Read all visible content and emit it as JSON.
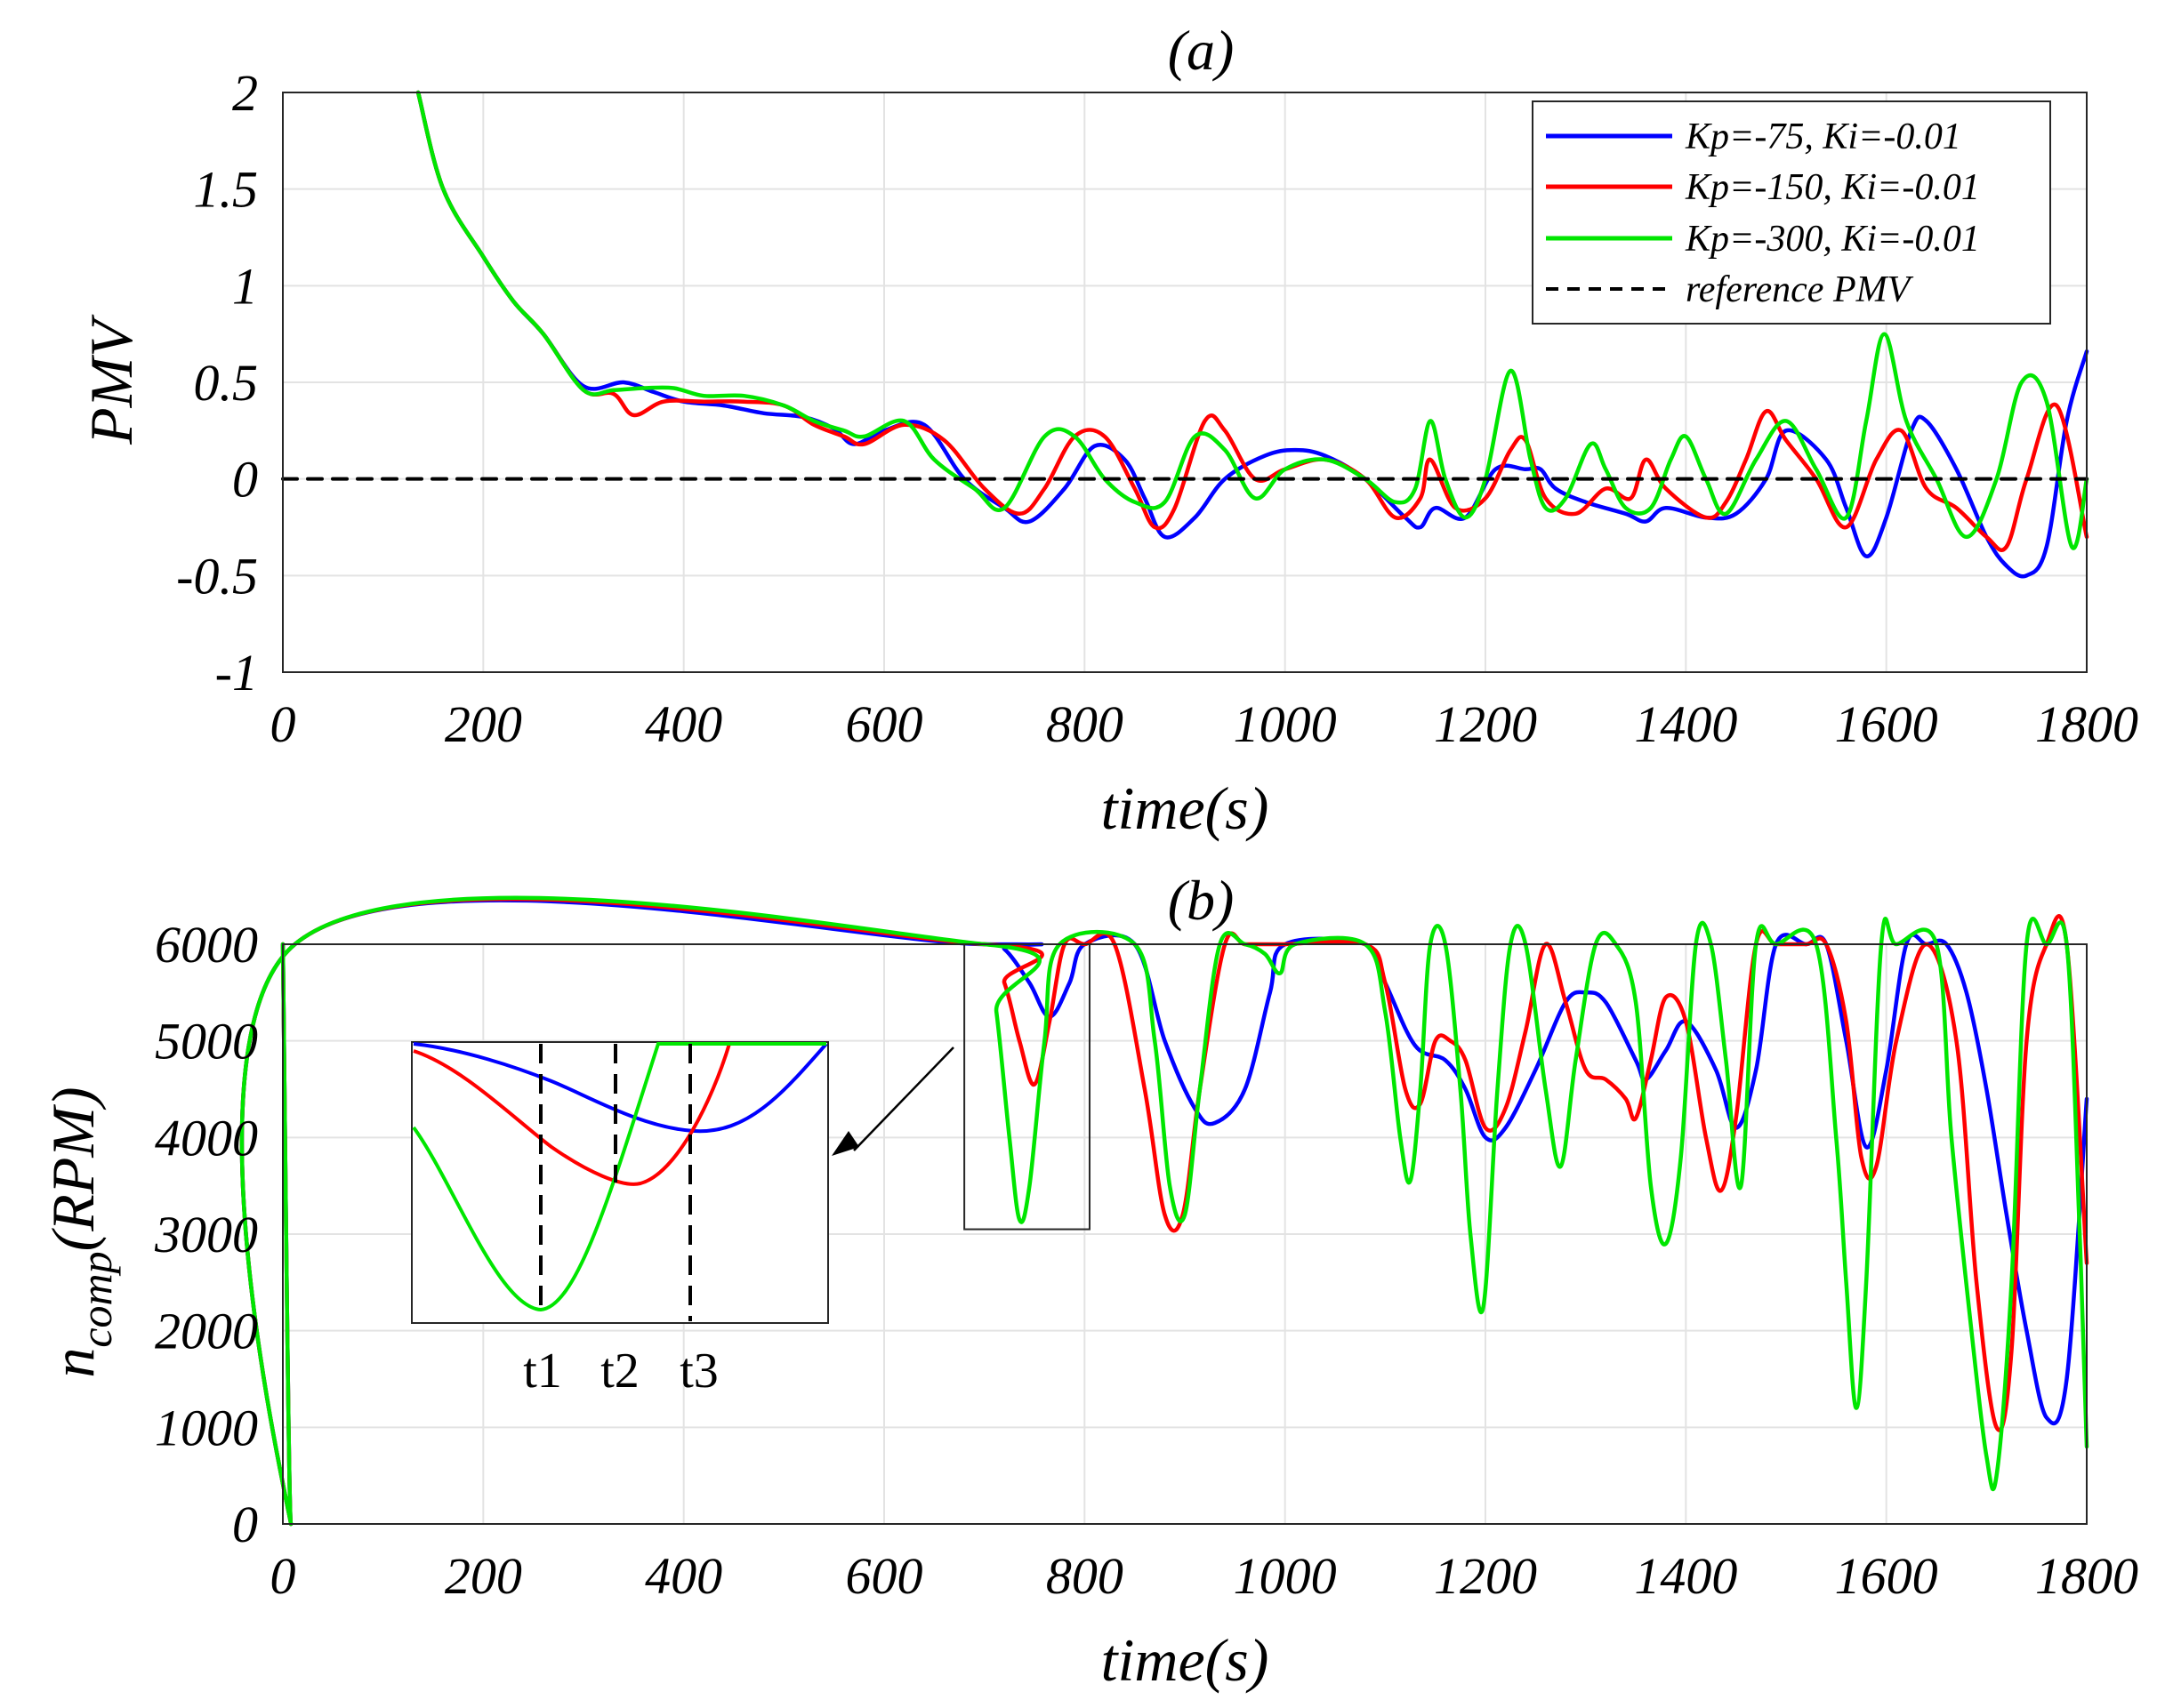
{
  "colors": {
    "kp75": "#0000ff",
    "kp150": "#ff0000",
    "kp300": "#00e600",
    "reference": "#000000",
    "grid": "#e3e3e3",
    "axes": "#262626"
  },
  "chart_data": [
    {
      "panel": "a",
      "type": "line",
      "title": "(a)",
      "xlabel": "time(s)",
      "ylabel": "PMV",
      "xlim": [
        0,
        1800
      ],
      "ylim": [
        -1,
        2
      ],
      "xticks": [
        "0",
        "200",
        "400",
        "600",
        "800",
        "1000",
        "1200",
        "1400",
        "1600",
        "1800"
      ],
      "yticks": [
        "-1",
        "-0.5",
        "0",
        "0.5",
        "1",
        "1.5",
        "2"
      ],
      "grid": true,
      "legend_location": "top-right",
      "legend": [
        "Kp=-75, Ki=-0.01",
        "Kp=-150, Ki=-0.01",
        "Kp=-300, Ki=-0.01",
        "reference PMV"
      ],
      "series": [
        {
          "name": "Kp=-75, Ki=-0.01",
          "color": "#0000ff",
          "x": [
            135,
            160,
            200,
            230,
            260,
            300,
            340,
            370,
            400,
            440,
            480,
            520,
            550,
            570,
            600,
            640,
            680,
            720,
            745,
            780,
            810,
            840,
            860,
            880,
            910,
            940,
            980,
            1010,
            1040,
            1080,
            1120,
            1135,
            1150,
            1180,
            1210,
            1240,
            1255,
            1270,
            1300,
            1340,
            1360,
            1380,
            1420,
            1450,
            1480,
            1500,
            1540,
            1560,
            1580,
            1600,
            1625,
            1640,
            1670,
            1700,
            1720,
            1740,
            1760,
            1780,
            1800
          ],
          "y": [
            2,
            1.5,
            1.15,
            0.92,
            0.75,
            0.48,
            0.5,
            0.45,
            0.4,
            0.38,
            0.34,
            0.32,
            0.26,
            0.18,
            0.25,
            0.28,
            0.0,
            -0.15,
            -0.22,
            -0.05,
            0.17,
            0.1,
            -0.1,
            -0.3,
            -0.2,
            0.0,
            0.12,
            0.15,
            0.12,
            0.0,
            -0.2,
            -0.25,
            -0.15,
            -0.2,
            0.05,
            0.05,
            0.05,
            -0.05,
            -0.12,
            -0.18,
            -0.22,
            -0.15,
            -0.2,
            -0.18,
            0.0,
            0.25,
            0.1,
            -0.15,
            -0.4,
            -0.2,
            0.25,
            0.3,
            0.05,
            -0.3,
            -0.45,
            -0.5,
            -0.35,
            0.3,
            0.66
          ]
        },
        {
          "name": "Kp=-150, Ki=-0.01",
          "color": "#ff0000",
          "x": [
            135,
            160,
            200,
            230,
            260,
            300,
            330,
            350,
            380,
            420,
            460,
            500,
            530,
            560,
            580,
            620,
            660,
            700,
            735,
            760,
            790,
            820,
            850,
            870,
            890,
            920,
            940,
            970,
            1000,
            1040,
            1080,
            1110,
            1135,
            1145,
            1170,
            1200,
            1225,
            1240,
            1260,
            1290,
            1320,
            1345,
            1360,
            1380,
            1420,
            1440,
            1460,
            1480,
            1500,
            1530,
            1560,
            1590,
            1615,
            1640,
            1670,
            1700,
            1720,
            1740,
            1770,
            1800
          ],
          "y": [
            2,
            1.5,
            1.15,
            0.92,
            0.75,
            0.46,
            0.44,
            0.33,
            0.4,
            0.4,
            0.4,
            0.38,
            0.28,
            0.22,
            0.18,
            0.28,
            0.2,
            -0.05,
            -0.18,
            -0.05,
            0.22,
            0.22,
            -0.05,
            -0.25,
            -0.15,
            0.3,
            0.25,
            0.0,
            0.05,
            0.1,
            0.0,
            -0.2,
            -0.1,
            0.1,
            -0.15,
            -0.1,
            0.15,
            0.2,
            -0.1,
            -0.18,
            -0.05,
            -0.1,
            0.1,
            -0.05,
            -0.2,
            -0.12,
            0.1,
            0.35,
            0.2,
            0.0,
            -0.25,
            0.1,
            0.25,
            -0.05,
            -0.15,
            -0.3,
            -0.35,
            0.0,
            0.38,
            -0.3
          ]
        },
        {
          "name": "Kp=-300, Ki=-0.01",
          "color": "#00e600",
          "x": [
            135,
            160,
            200,
            230,
            260,
            300,
            330,
            360,
            390,
            420,
            460,
            500,
            530,
            560,
            580,
            620,
            650,
            690,
            720,
            760,
            790,
            820,
            850,
            880,
            910,
            940,
            970,
            1000,
            1040,
            1080,
            1110,
            1130,
            1145,
            1160,
            1180,
            1200,
            1225,
            1245,
            1260,
            1280,
            1305,
            1320,
            1340,
            1365,
            1385,
            1400,
            1420,
            1440,
            1470,
            1500,
            1530,
            1560,
            1580,
            1598,
            1620,
            1650,
            1680,
            1710,
            1735,
            1760,
            1785,
            1800
          ],
          "y": [
            2,
            1.5,
            1.15,
            0.92,
            0.75,
            0.46,
            0.46,
            0.47,
            0.47,
            0.43,
            0.43,
            0.38,
            0.3,
            0.25,
            0.22,
            0.3,
            0.1,
            -0.05,
            -0.15,
            0.22,
            0.22,
            0.0,
            -0.12,
            -0.12,
            0.22,
            0.15,
            -0.1,
            0.05,
            0.1,
            0.0,
            -0.12,
            -0.05,
            0.3,
            0.0,
            -0.2,
            0.0,
            0.56,
            0.1,
            -0.15,
            -0.1,
            0.18,
            0.05,
            -0.15,
            -0.15,
            0.1,
            0.22,
            0.0,
            -0.18,
            0.1,
            0.3,
            0.05,
            -0.2,
            0.3,
            0.75,
            0.3,
            0.0,
            -0.3,
            0.0,
            0.5,
            0.4,
            -0.35,
            0.0
          ]
        },
        {
          "name": "reference PMV",
          "color": "#000000",
          "style": "dashed",
          "x": [
            0,
            1800
          ],
          "y": [
            0,
            0
          ]
        }
      ]
    },
    {
      "panel": "b",
      "type": "line",
      "title": "(b)",
      "xlabel": "time(s)",
      "ylabel_main": "n",
      "ylabel_sub": "comp",
      "ylabel_unit": "(RPM)",
      "xlim": [
        0,
        1800
      ],
      "ylim": [
        0,
        6000
      ],
      "xticks": [
        "0",
        "200",
        "400",
        "600",
        "800",
        "1000",
        "1200",
        "1400",
        "1600",
        "1800"
      ],
      "yticks": [
        "0",
        "1000",
        "2000",
        "3000",
        "4000",
        "5000",
        "6000"
      ],
      "grid": true,
      "series": [
        {
          "name": "Kp=-75, Ki=-0.01",
          "color": "#0000ff",
          "x": [
            0,
            8,
            12,
            700,
            720,
            745,
            765,
            785,
            800,
            850,
            880,
            910,
            930,
            960,
            985,
            1000,
            1080,
            1100,
            1130,
            1160,
            1180,
            1200,
            1220,
            1250,
            1280,
            1300,
            1320,
            1350,
            1360,
            1380,
            1400,
            1430,
            1450,
            1470,
            1490,
            1520,
            1540,
            1560,
            1580,
            1600,
            1620,
            1640,
            1660,
            1680,
            1700,
            1720,
            1740,
            1760,
            1780,
            1800
          ],
          "y": [
            6000,
            0,
            6000,
            6000,
            5950,
            5600,
            5250,
            5600,
            6000,
            6000,
            5000,
            4300,
            4150,
            4500,
            5500,
            6000,
            6000,
            5600,
            4950,
            4800,
            4500,
            4000,
            4100,
            4700,
            5400,
            5500,
            5400,
            4800,
            4600,
            4900,
            5200,
            4700,
            4100,
            4700,
            6000,
            6000,
            6000,
            5000,
            3900,
            4700,
            6000,
            6000,
            6000,
            5500,
            4500,
            3200,
            2000,
            1100,
            1500,
            4400
          ]
        },
        {
          "name": "Kp=-150, Ki=-0.01",
          "color": "#ff0000",
          "x": [
            0,
            8,
            12,
            700,
            720,
            735,
            750,
            765,
            780,
            800,
            830,
            860,
            880,
            898,
            915,
            940,
            960,
            990,
            1000,
            1080,
            1100,
            1120,
            1135,
            1150,
            1165,
            1180,
            1200,
            1220,
            1240,
            1260,
            1280,
            1300,
            1320,
            1340,
            1350,
            1365,
            1380,
            1400,
            1420,
            1435,
            1450,
            1470,
            1490,
            1520,
            1540,
            1560,
            1575,
            1590,
            1610,
            1640,
            1670,
            1690,
            1710,
            1725,
            1740,
            1760,
            1780,
            1800
          ],
          "y": [
            6000,
            0,
            6000,
            6000,
            5600,
            5000,
            4550,
            5200,
            6000,
            6000,
            6000,
            4500,
            3200,
            3200,
            4500,
            6000,
            6000,
            6000,
            6000,
            6000,
            5600,
            4500,
            4350,
            5000,
            5000,
            4800,
            4100,
            4300,
            5100,
            6000,
            5400,
            4700,
            4600,
            4400,
            4200,
            4800,
            5450,
            5200,
            4000,
            3450,
            4200,
            6000,
            6000,
            6000,
            6000,
            5200,
            3800,
            3700,
            5000,
            6000,
            5000,
            2500,
            1000,
            1800,
            5000,
            6000,
            6000,
            2700
          ]
        },
        {
          "name": "Kp=-300, Ki=-0.01",
          "color": "#00e600",
          "x": [
            0,
            8,
            12,
            700,
            712,
            725,
            735,
            745,
            760,
            775,
            850,
            870,
            885,
            900,
            915,
            935,
            960,
            980,
            995,
            1010,
            1080,
            1100,
            1115,
            1125,
            1135,
            1145,
            1160,
            1175,
            1185,
            1198,
            1212,
            1225,
            1240,
            1260,
            1275,
            1290,
            1310,
            1330,
            1350,
            1365,
            1380,
            1395,
            1410,
            1425,
            1440,
            1455,
            1470,
            1490,
            1530,
            1550,
            1560,
            1570,
            1580,
            1595,
            1610,
            1650,
            1665,
            1685,
            1700,
            1710,
            1725,
            1740,
            1760,
            1780,
            1793,
            1800
          ],
          "y": [
            6000,
            0,
            6000,
            6000,
            5300,
            4000,
            3150,
            3500,
            5000,
            6000,
            6000,
            5000,
            3500,
            3200,
            4500,
            6000,
            6000,
            5900,
            5700,
            6000,
            6000,
            5300,
            4000,
            3550,
            4500,
            6000,
            6000,
            4500,
            3000,
            2250,
            4500,
            6000,
            6000,
            4500,
            3700,
            4800,
            6000,
            6000,
            5400,
            3500,
            2900,
            3800,
            6000,
            6000,
            4800,
            3500,
            6000,
            6000,
            6000,
            4000,
            2500,
            1200,
            2500,
            6000,
            6000,
            6000,
            4000,
            2000,
            700,
            500,
            2500,
            6000,
            6000,
            6000,
            3000,
            800
          ]
        }
      ],
      "zoom_box_x": [
        680,
        805
      ],
      "zoom_box_y": [
        3050,
        6000
      ],
      "inset_labels": [
        "t1",
        "t2",
        "t3"
      ]
    }
  ]
}
